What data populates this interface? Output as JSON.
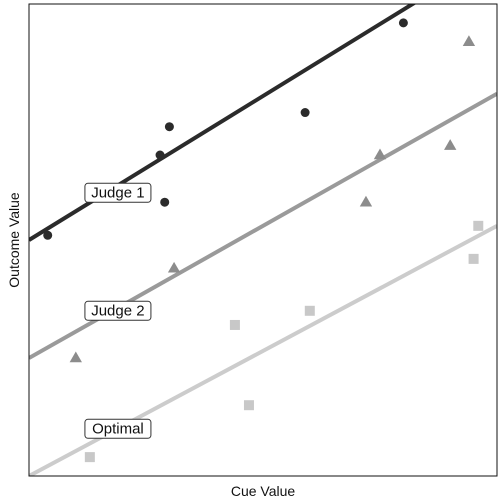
{
  "chart_data": {
    "type": "scatter",
    "title": "",
    "xlabel": "Cue Value",
    "ylabel": "Outcome Value",
    "xlim": [
      0,
      100
    ],
    "ylim": [
      0,
      100
    ],
    "grid": false,
    "legend": "none",
    "series": [
      {
        "name": "Judge 1",
        "marker": "circle",
        "color": "#2b2b2b",
        "line_color": "#2b2b2b",
        "points": [
          {
            "x": 4,
            "y": 51
          },
          {
            "x": 28,
            "y": 68
          },
          {
            "x": 30,
            "y": 74
          },
          {
            "x": 29,
            "y": 58
          },
          {
            "x": 59,
            "y": 77
          },
          {
            "x": 80,
            "y": 96
          }
        ],
        "fit": {
          "intercept": 50,
          "slope": 0.61
        }
      },
      {
        "name": "Judge 2",
        "marker": "triangle",
        "color": "#8c8c8c",
        "line_color": "#9a9a9a",
        "points": [
          {
            "x": 10,
            "y": 25
          },
          {
            "x": 31,
            "y": 44
          },
          {
            "x": 72,
            "y": 58
          },
          {
            "x": 75,
            "y": 68
          },
          {
            "x": 90,
            "y": 70
          },
          {
            "x": 94,
            "y": 92
          }
        ],
        "fit": {
          "intercept": 25,
          "slope": 0.56
        }
      },
      {
        "name": "Optimal",
        "marker": "square",
        "color": "#c8c8c8",
        "line_color": "#cccccc",
        "points": [
          {
            "x": 13,
            "y": 4
          },
          {
            "x": 44,
            "y": 32
          },
          {
            "x": 47,
            "y": 15
          },
          {
            "x": 60,
            "y": 35
          },
          {
            "x": 95,
            "y": 46
          },
          {
            "x": 96,
            "y": 53
          }
        ],
        "fit": {
          "intercept": 0,
          "slope": 0.53
        }
      }
    ],
    "line_labels": [
      {
        "series": "Judge 1",
        "text": "Judge 1",
        "x": 19,
        "y": 60
      },
      {
        "series": "Judge 2",
        "text": "Judge 2",
        "x": 19,
        "y": 35
      },
      {
        "series": "Optimal",
        "text": "Optimal",
        "x": 19,
        "y": 10
      }
    ]
  }
}
